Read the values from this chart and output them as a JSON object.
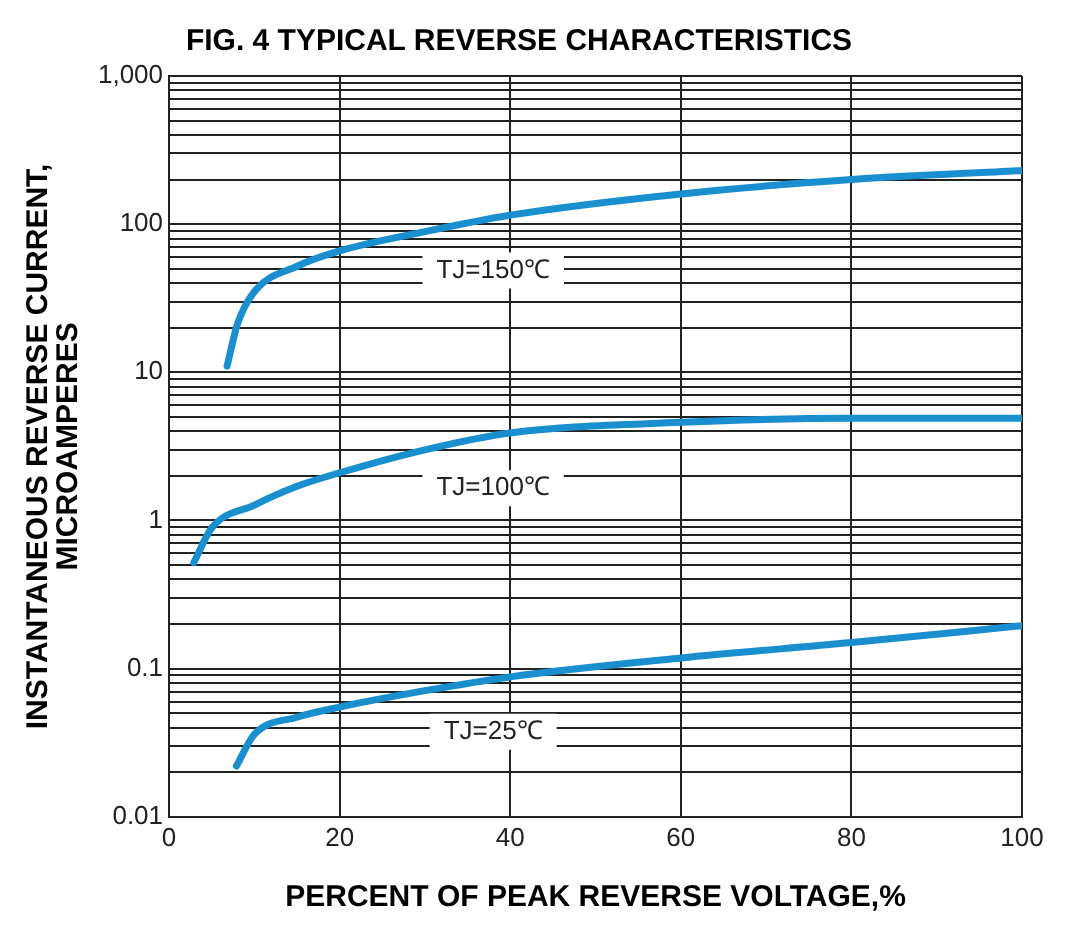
{
  "chart_data": {
    "type": "line",
    "title": "FIG. 4 TYPICAL REVERSE CHARACTERISTICS",
    "xlabel": "PERCENT OF PEAK REVERSE VOLTAGE,%",
    "ylabel": "INSTANTANEOUS REVERSE CURRENT, MICROAMPERES",
    "log": "y",
    "grid": true,
    "legend": false,
    "marker": "none",
    "line_style": "solid",
    "xlim": [
      0,
      100
    ],
    "xticks": [
      0,
      20,
      40,
      60,
      80,
      100
    ],
    "ylim": [
      0.01,
      1000
    ],
    "yticks": [
      0.01,
      {
        "value": 0.02,
        "label": null
      },
      {
        "value": 0.03,
        "label": null
      },
      {
        "value": 0.04,
        "label": null
      },
      {
        "value": 0.05,
        "label": null
      },
      {
        "value": 0.06,
        "label": null
      },
      {
        "value": 0.07,
        "label": null
      },
      {
        "value": 0.08,
        "label": null
      },
      {
        "value": 0.09,
        "label": null
      },
      0.1,
      {
        "value": 0.2,
        "label": null
      },
      {
        "value": 0.3,
        "label": null
      },
      {
        "value": 0.4,
        "label": null
      },
      {
        "value": 0.5,
        "label": null
      },
      {
        "value": 0.6,
        "label": null
      },
      {
        "value": 0.7,
        "label": null
      },
      {
        "value": 0.8,
        "label": null
      },
      {
        "value": 0.9,
        "label": null
      },
      1,
      {
        "value": 2,
        "label": null
      },
      {
        "value": 3,
        "label": null
      },
      {
        "value": 4,
        "label": null
      },
      {
        "value": 5,
        "label": null
      },
      {
        "value": 6,
        "label": null
      },
      {
        "value": 7,
        "label": null
      },
      {
        "value": 8,
        "label": null
      },
      {
        "value": 9,
        "label": null
      },
      10,
      {
        "value": 20,
        "label": null
      },
      {
        "value": 30,
        "label": null
      },
      {
        "value": 40,
        "label": null
      },
      {
        "value": 50,
        "label": null
      },
      {
        "value": 60,
        "label": null
      },
      {
        "value": 70,
        "label": null
      },
      {
        "value": 80,
        "label": null
      },
      {
        "value": 90,
        "label": null
      },
      100,
      {
        "value": 200,
        "label": null
      },
      {
        "value": 300,
        "label": null
      },
      {
        "value": 400,
        "label": null
      },
      {
        "value": 500,
        "label": null
      },
      {
        "value": 600,
        "label": null
      },
      {
        "value": 700,
        "label": null
      },
      {
        "value": 800,
        "label": null
      },
      {
        "value": 900,
        "label": null
      },
      {
        "value": 1000,
        "label": "1,000"
      }
    ],
    "series": [
      {
        "name": "TJ=150℃",
        "color": "#1a8fd0",
        "x": [
          6.8,
          8,
          10,
          15,
          20,
          30,
          40,
          60,
          80,
          100
        ],
        "values": [
          11,
          21,
          35,
          52,
          66,
          89,
          115,
          160,
          200,
          230
        ]
      },
      {
        "name": "TJ=100℃",
        "color": "#1a8fd0",
        "x": [
          2.9,
          5,
          10,
          15,
          20,
          30,
          40,
          60,
          80,
          100
        ],
        "values": [
          0.52,
          0.89,
          1.27,
          1.7,
          2.1,
          3.0,
          3.9,
          4.6,
          4.9,
          4.9
        ]
      },
      {
        "name": "TJ=25℃",
        "color": "#1a8fd0",
        "x": [
          7.9,
          10,
          15,
          20,
          30,
          40,
          60,
          80,
          100
        ],
        "values": [
          0.022,
          0.036,
          0.047,
          0.055,
          0.071,
          0.088,
          0.118,
          0.15,
          0.195
        ]
      }
    ]
  }
}
